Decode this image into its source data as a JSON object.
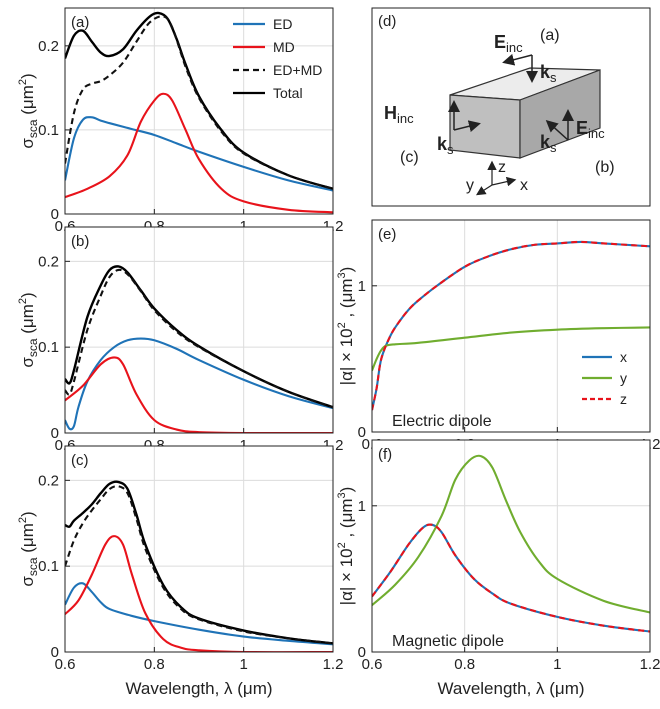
{
  "colors": {
    "ED": "#1f73b7",
    "MD": "#e8131b",
    "ED+MD": "#111111",
    "Total": "#000000",
    "x": "#1f73b7",
    "y": "#70ad2f",
    "z": "#e8131b"
  },
  "chart_data": [
    {
      "panel": "(a)",
      "type": "line",
      "xlabel": "",
      "ylabel_main": "σ",
      "ylabel_sub": "sca",
      "ylabel_unit_pre": " (μm",
      "ylabel_unit_sup": "2",
      "ylabel_unit_post": ")",
      "xlim": [
        0.6,
        1.2
      ],
      "ylim": [
        0,
        0.245
      ],
      "xticks": [
        0.6,
        0.8,
        1,
        1.2
      ],
      "xtick_labels": [
        "0.6",
        "0.8",
        "1",
        "1.2"
      ],
      "yticks": [
        0,
        0.1,
        0.2
      ],
      "ytick_labels": [
        "0",
        "0.1",
        "0.2"
      ],
      "grid": true,
      "legend_position": "top-right",
      "series": [
        {
          "name": "ED",
          "style": "solid",
          "x": [
            0.6,
            0.62,
            0.64,
            0.66,
            0.68,
            0.7,
            0.75,
            0.8,
            0.85,
            0.9,
            1.0,
            1.1,
            1.2
          ],
          "y": [
            0.04,
            0.09,
            0.112,
            0.115,
            0.111,
            0.108,
            0.101,
            0.094,
            0.084,
            0.074,
            0.056,
            0.04,
            0.028
          ]
        },
        {
          "name": "MD",
          "style": "solid",
          "x": [
            0.6,
            0.65,
            0.7,
            0.74,
            0.77,
            0.8,
            0.82,
            0.84,
            0.87,
            0.9,
            0.95,
            1.0,
            1.1,
            1.2
          ],
          "y": [
            0.02,
            0.03,
            0.045,
            0.07,
            0.11,
            0.135,
            0.143,
            0.135,
            0.1,
            0.065,
            0.03,
            0.015,
            0.005,
            0.002
          ]
        },
        {
          "name": "ED+MD",
          "style": "dashed",
          "x": [
            0.6,
            0.62,
            0.64,
            0.66,
            0.68,
            0.7,
            0.73,
            0.76,
            0.79,
            0.82,
            0.84,
            0.87,
            0.9,
            0.95,
            1.0,
            1.1,
            1.2
          ],
          "y": [
            0.06,
            0.12,
            0.148,
            0.155,
            0.158,
            0.165,
            0.18,
            0.205,
            0.228,
            0.235,
            0.222,
            0.175,
            0.138,
            0.098,
            0.072,
            0.046,
            0.03
          ]
        },
        {
          "name": "Total",
          "style": "solid",
          "x": [
            0.6,
            0.62,
            0.64,
            0.66,
            0.68,
            0.7,
            0.73,
            0.76,
            0.79,
            0.81,
            0.83,
            0.85,
            0.87,
            0.9,
            0.95,
            1.0,
            1.1,
            1.2
          ],
          "y": [
            0.185,
            0.212,
            0.218,
            0.205,
            0.192,
            0.188,
            0.196,
            0.218,
            0.235,
            0.239,
            0.232,
            0.208,
            0.178,
            0.14,
            0.1,
            0.073,
            0.046,
            0.03
          ]
        }
      ]
    },
    {
      "panel": "(b)",
      "type": "line",
      "xlabel": "",
      "ylabel_main": "σ",
      "ylabel_sub": "sca",
      "ylabel_unit_pre": " (μm",
      "ylabel_unit_sup": "2",
      "ylabel_unit_post": ")",
      "xlim": [
        0.6,
        1.2
      ],
      "ylim": [
        0,
        0.24
      ],
      "xticks": [
        0.6,
        0.8,
        1,
        1.2
      ],
      "xtick_labels": [
        "0.6",
        "0.8",
        "1",
        "1.2"
      ],
      "yticks": [
        0,
        0.1,
        0.2
      ],
      "ytick_labels": [
        "0",
        "0.1",
        "0.2"
      ],
      "grid": true,
      "series": [
        {
          "name": "ED",
          "style": "solid",
          "x": [
            0.6,
            0.61,
            0.62,
            0.63,
            0.65,
            0.68,
            0.71,
            0.74,
            0.77,
            0.8,
            0.85,
            0.9,
            1.0,
            1.1,
            1.2
          ],
          "y": [
            0.015,
            0.005,
            0.008,
            0.03,
            0.06,
            0.085,
            0.1,
            0.108,
            0.11,
            0.108,
            0.098,
            0.085,
            0.062,
            0.043,
            0.029
          ]
        },
        {
          "name": "MD",
          "style": "solid",
          "x": [
            0.6,
            0.64,
            0.68,
            0.71,
            0.73,
            0.76,
            0.8,
            0.85,
            0.9,
            1.0,
            1.2
          ],
          "y": [
            0.038,
            0.055,
            0.08,
            0.088,
            0.08,
            0.045,
            0.015,
            0.004,
            0.001,
            0.0,
            0.0
          ]
        },
        {
          "name": "ED+MD",
          "style": "dashed",
          "x": [
            0.6,
            0.61,
            0.62,
            0.65,
            0.68,
            0.7,
            0.72,
            0.74,
            0.77,
            0.8,
            0.85,
            0.9,
            1.0,
            1.1,
            1.2
          ],
          "y": [
            0.05,
            0.045,
            0.06,
            0.12,
            0.16,
            0.182,
            0.19,
            0.185,
            0.165,
            0.143,
            0.118,
            0.1,
            0.072,
            0.048,
            0.03
          ]
        },
        {
          "name": "Total",
          "style": "solid",
          "x": [
            0.6,
            0.61,
            0.62,
            0.65,
            0.68,
            0.7,
            0.72,
            0.74,
            0.77,
            0.8,
            0.85,
            0.9,
            1.0,
            1.1,
            1.2
          ],
          "y": [
            0.063,
            0.058,
            0.073,
            0.135,
            0.172,
            0.19,
            0.194,
            0.187,
            0.166,
            0.145,
            0.12,
            0.101,
            0.072,
            0.048,
            0.03
          ]
        }
      ]
    },
    {
      "panel": "(c)",
      "type": "line",
      "xlabel": "Wavelength, λ (μm)",
      "ylabel_main": "σ",
      "ylabel_sub": "sca",
      "ylabel_unit_pre": " (μm",
      "ylabel_unit_sup": "2",
      "ylabel_unit_post": ")",
      "xlim": [
        0.6,
        1.2
      ],
      "ylim": [
        0,
        0.24
      ],
      "xticks": [
        0.6,
        0.8,
        1,
        1.2
      ],
      "xtick_labels": [
        "0.6",
        "0.8",
        "1",
        "1.2"
      ],
      "yticks": [
        0,
        0.1,
        0.2
      ],
      "ytick_labels": [
        "0",
        "0.1",
        "0.2"
      ],
      "grid": true,
      "series": [
        {
          "name": "ED",
          "style": "solid",
          "x": [
            0.6,
            0.62,
            0.64,
            0.66,
            0.68,
            0.7,
            0.75,
            0.8,
            0.9,
            1.0,
            1.1,
            1.2
          ],
          "y": [
            0.055,
            0.075,
            0.08,
            0.07,
            0.058,
            0.05,
            0.042,
            0.036,
            0.026,
            0.018,
            0.013,
            0.009
          ]
        },
        {
          "name": "MD",
          "style": "solid",
          "x": [
            0.6,
            0.63,
            0.66,
            0.69,
            0.71,
            0.73,
            0.75,
            0.78,
            0.82,
            0.86,
            0.9,
            1.0,
            1.2
          ],
          "y": [
            0.044,
            0.06,
            0.09,
            0.125,
            0.135,
            0.125,
            0.09,
            0.045,
            0.015,
            0.005,
            0.002,
            0.0,
            0.0
          ]
        },
        {
          "name": "ED+MD",
          "style": "dashed",
          "x": [
            0.6,
            0.62,
            0.64,
            0.66,
            0.68,
            0.7,
            0.72,
            0.74,
            0.76,
            0.78,
            0.82,
            0.86,
            0.9,
            1.0,
            1.1,
            1.2
          ],
          "y": [
            0.1,
            0.13,
            0.15,
            0.165,
            0.178,
            0.19,
            0.193,
            0.185,
            0.155,
            0.12,
            0.075,
            0.05,
            0.038,
            0.024,
            0.016,
            0.01
          ]
        },
        {
          "name": "Total",
          "style": "solid",
          "x": [
            0.6,
            0.61,
            0.62,
            0.64,
            0.66,
            0.68,
            0.7,
            0.72,
            0.74,
            0.76,
            0.78,
            0.82,
            0.86,
            0.9,
            1.0,
            1.1,
            1.2
          ],
          "y": [
            0.148,
            0.146,
            0.153,
            0.162,
            0.172,
            0.185,
            0.196,
            0.198,
            0.19,
            0.16,
            0.125,
            0.078,
            0.052,
            0.039,
            0.025,
            0.016,
            0.01
          ]
        }
      ]
    },
    {
      "panel": "(e)",
      "type": "line",
      "xlabel": "",
      "ylabel_main": "|α| × 10",
      "ylabel_sup": "2",
      "ylabel_unit_pre": " , (μm",
      "ylabel_unit_sup": "3",
      "ylabel_unit_post": ")",
      "annotation": "Electric dipole",
      "xlim": [
        0.6,
        1.2
      ],
      "ylim": [
        0,
        1.45
      ],
      "xticks": [
        0.6,
        0.8,
        1,
        1.2
      ],
      "xtick_labels": [
        "0.6",
        "0.8",
        "1",
        "1.2"
      ],
      "yticks": [
        0,
        1
      ],
      "ytick_labels": [
        "0",
        "1"
      ],
      "grid": true,
      "legend_position": "bottom-right",
      "series": [
        {
          "name": "x",
          "style": "solid",
          "x": [
            0.6,
            0.61,
            0.62,
            0.64,
            0.66,
            0.68,
            0.7,
            0.74,
            0.8,
            0.85,
            0.9,
            0.95,
            1.0,
            1.05,
            1.1,
            1.2
          ],
          "y": [
            0.15,
            0.3,
            0.5,
            0.66,
            0.76,
            0.84,
            0.9,
            1.0,
            1.13,
            1.2,
            1.25,
            1.28,
            1.29,
            1.3,
            1.29,
            1.27
          ]
        },
        {
          "name": "y",
          "style": "solid",
          "x": [
            0.6,
            0.61,
            0.62,
            0.63,
            0.65,
            0.7,
            0.8,
            0.9,
            1.0,
            1.1,
            1.2
          ],
          "y": [
            0.42,
            0.5,
            0.56,
            0.59,
            0.6,
            0.61,
            0.645,
            0.68,
            0.7,
            0.71,
            0.715
          ]
        },
        {
          "name": "z",
          "style": "dashed",
          "x": [
            0.6,
            0.61,
            0.62,
            0.64,
            0.66,
            0.68,
            0.7,
            0.74,
            0.8,
            0.85,
            0.9,
            0.95,
            1.0,
            1.05,
            1.1,
            1.2
          ],
          "y": [
            0.15,
            0.3,
            0.5,
            0.66,
            0.76,
            0.84,
            0.9,
            1.0,
            1.13,
            1.2,
            1.25,
            1.28,
            1.29,
            1.3,
            1.29,
            1.27
          ]
        }
      ]
    },
    {
      "panel": "(f)",
      "type": "line",
      "xlabel": "Wavelength, λ (μm)",
      "ylabel_main": "|α| × 10",
      "ylabel_sup": "2",
      "ylabel_unit_pre": " , (μm",
      "ylabel_unit_sup": "3",
      "ylabel_unit_post": ")",
      "annotation": "Magnetic dipole",
      "xlim": [
        0.6,
        1.2
      ],
      "ylim": [
        0,
        1.45
      ],
      "xticks": [
        0.6,
        0.8,
        1,
        1.2
      ],
      "xtick_labels": [
        "0.6",
        "0.8",
        "1",
        "1.2"
      ],
      "yticks": [
        0,
        1
      ],
      "ytick_labels": [
        "0",
        "1"
      ],
      "grid": true,
      "series": [
        {
          "name": "x",
          "style": "solid",
          "x": [
            0.6,
            0.64,
            0.68,
            0.71,
            0.73,
            0.75,
            0.78,
            0.82,
            0.86,
            0.9,
            1.0,
            1.1,
            1.2
          ],
          "y": [
            0.38,
            0.55,
            0.74,
            0.85,
            0.87,
            0.82,
            0.66,
            0.5,
            0.4,
            0.33,
            0.24,
            0.18,
            0.14
          ]
        },
        {
          "name": "y",
          "style": "solid",
          "x": [
            0.6,
            0.65,
            0.7,
            0.75,
            0.78,
            0.81,
            0.835,
            0.86,
            0.89,
            0.92,
            0.96,
            1.0,
            1.1,
            1.2
          ],
          "y": [
            0.32,
            0.46,
            0.65,
            0.93,
            1.18,
            1.31,
            1.34,
            1.26,
            1.03,
            0.82,
            0.62,
            0.5,
            0.35,
            0.27
          ]
        },
        {
          "name": "z",
          "style": "dashed",
          "x": [
            0.6,
            0.64,
            0.68,
            0.71,
            0.73,
            0.75,
            0.78,
            0.82,
            0.86,
            0.9,
            1.0,
            1.1,
            1.2
          ],
          "y": [
            0.38,
            0.55,
            0.74,
            0.85,
            0.87,
            0.82,
            0.66,
            0.5,
            0.4,
            0.33,
            0.24,
            0.18,
            0.14
          ]
        }
      ]
    }
  ],
  "schematic": {
    "panel": "(d)",
    "e_inc": "E",
    "e_inc_sub": "inc",
    "h_inc": "H",
    "h_inc_sub": "inc",
    "k_s": "k",
    "k_s_sub": "s",
    "face_a": "(a)",
    "face_b": "(b)",
    "face_c": "(c)",
    "axis_x": "x",
    "axis_y": "y",
    "axis_z": "z"
  }
}
